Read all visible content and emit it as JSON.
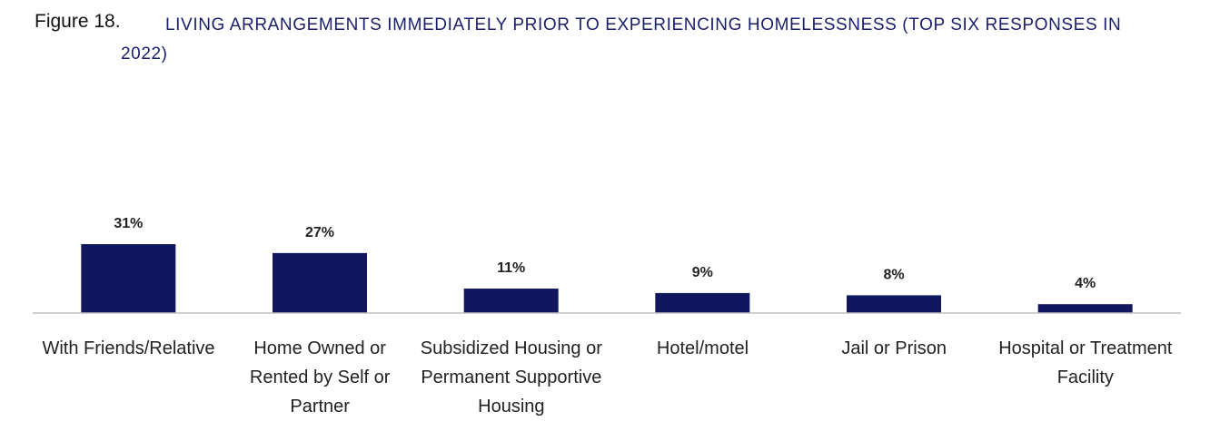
{
  "chart_data": {
    "type": "bar",
    "figure_label": "Figure 18.",
    "title": "LIVING ARRANGEMENTS IMMEDIATELY PRIOR TO EXPERIENCING HOMELESSNESS (TOP SIX RESPONSES IN 2022)",
    "categories": [
      "With Friends/Relative",
      "Home Owned or Rented by Self or Partner",
      "Subsidized Housing or Permanent Supportive Housing",
      "Hotel/motel",
      "Jail or Prison",
      "Hospital or Treatment Facility"
    ],
    "values": [
      31,
      27,
      11,
      9,
      8,
      4
    ],
    "value_labels": [
      "31%",
      "27%",
      "11%",
      "9%",
      "8%",
      "4%"
    ],
    "color": "#10175f"
  }
}
